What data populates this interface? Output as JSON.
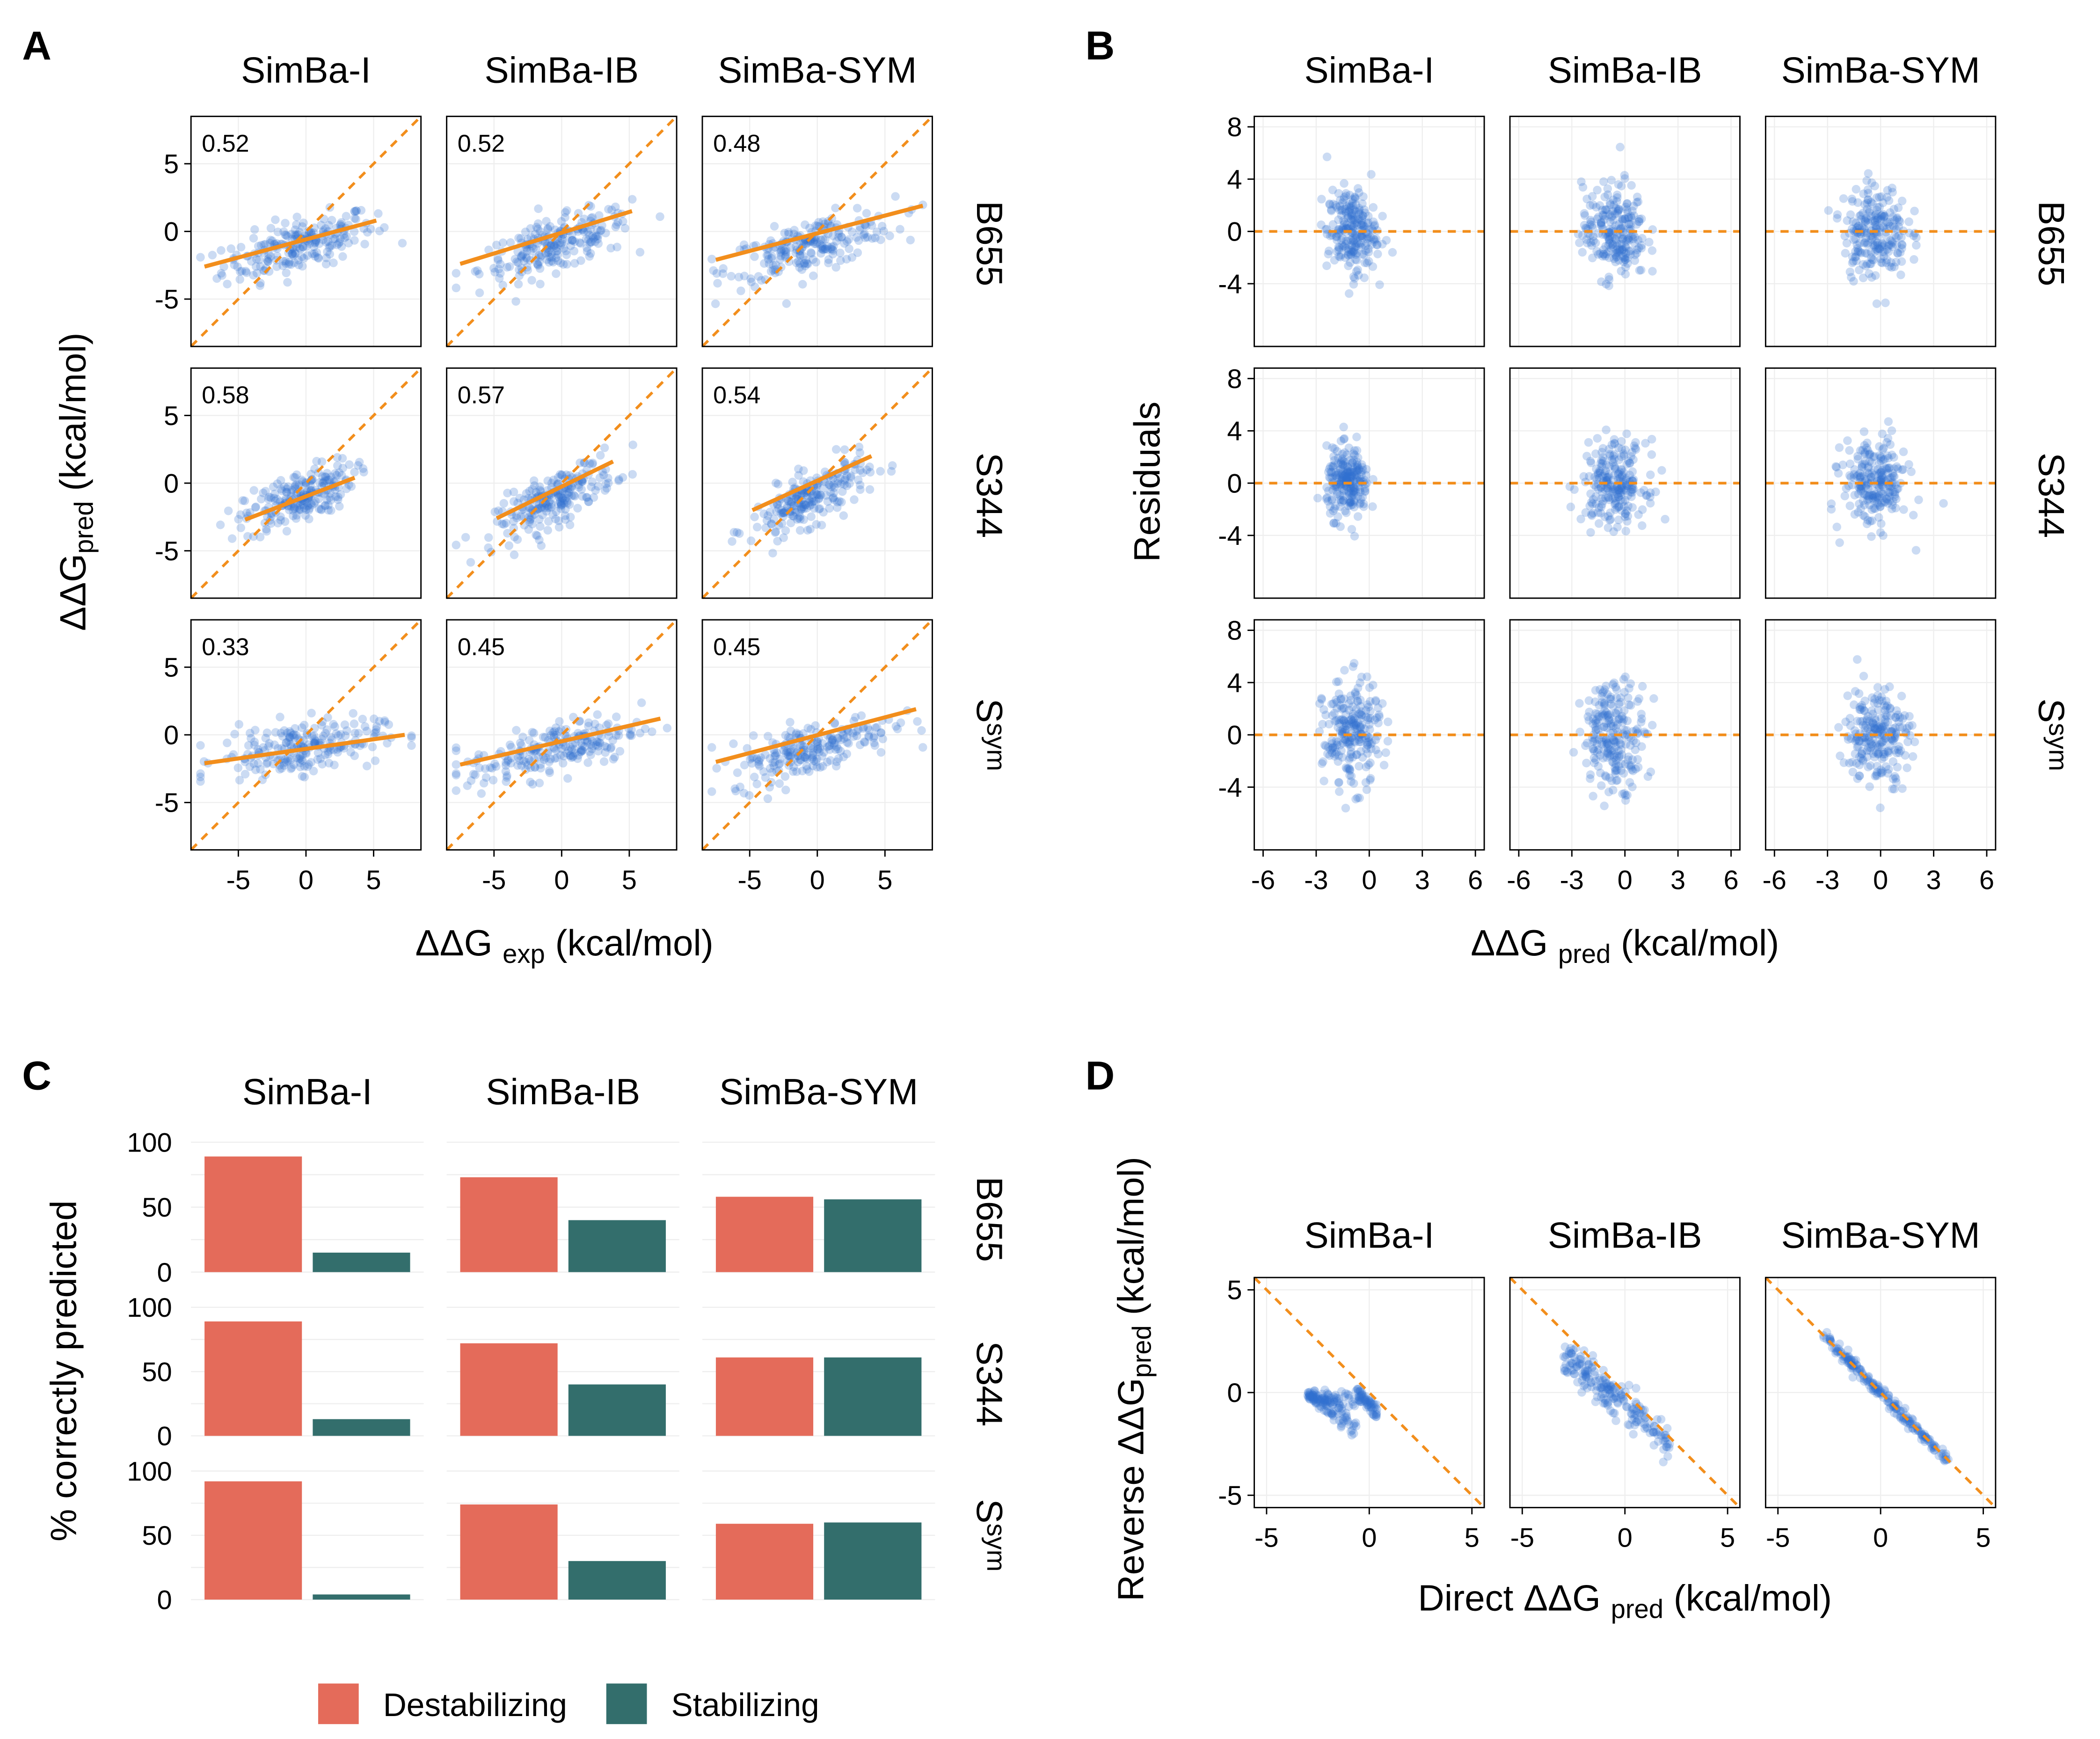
{
  "figure": {
    "panels": {
      "A": {
        "label": "A"
      },
      "B": {
        "label": "B"
      },
      "C": {
        "label": "C"
      },
      "D": {
        "label": "D"
      }
    },
    "methods": [
      "SimBa-I",
      "SimBa-IB",
      "SimBa-SYM"
    ],
    "datasets": [
      "B655",
      "S344",
      "S"
    ],
    "dataset_superscript": "sym",
    "colors": {
      "points": "#2f6fce",
      "orange": "#f28e1c",
      "destabilizing": "#e46b5a",
      "stabilizing": "#336e6c",
      "grid": "#eeeeee",
      "axis": "#000000"
    }
  },
  "chart_data": [
    {
      "id": "A",
      "type": "scatter",
      "xlabel": "ΔΔG",
      "xlabel_sub": "exp",
      "xlabel_unit": "(kcal/mol)",
      "ylabel": "ΔΔG",
      "ylabel_sub": "pred",
      "ylabel_unit": "(kcal/mol)",
      "xlim": [
        -8.5,
        8.5
      ],
      "ylim": [
        -8.5,
        8.5
      ],
      "xticks": [
        -5,
        0,
        5
      ],
      "yticks": [
        -5,
        0,
        5
      ],
      "xtick_labels": [
        "-5",
        "0",
        "5"
      ],
      "ytick_labels": [
        "-5",
        "0",
        "5"
      ],
      "reference_line": "y = x (dashed)",
      "correlations": [
        [
          "0.52",
          "0.52",
          "0.48"
        ],
        [
          "0.58",
          "0.57",
          "0.54"
        ],
        [
          "0.33",
          "0.45",
          "0.45"
        ]
      ],
      "fit_lines": [
        [
          [
            [
              -7.5,
              -2.6
            ],
            [
              5.2,
              0.8
            ]
          ],
          [
            [
              -7.5,
              -2.4
            ],
            [
              5.2,
              1.5
            ]
          ],
          [
            [
              -7.5,
              -2.1
            ],
            [
              7.8,
              1.9
            ]
          ]
        ],
        [
          [
            [
              -4.5,
              -2.7
            ],
            [
              3.6,
              0.4
            ]
          ],
          [
            [
              -4.8,
              -2.6
            ],
            [
              3.8,
              1.6
            ]
          ],
          [
            [
              -4.8,
              -2.0
            ],
            [
              4.0,
              2.0
            ]
          ]
        ],
        [
          [
            [
              -7.5,
              -2.1
            ],
            [
              7.3,
              0.0
            ]
          ],
          [
            [
              -7.5,
              -2.2
            ],
            [
              7.3,
              1.2
            ]
          ],
          [
            [
              -7.5,
              -2.0
            ],
            [
              7.3,
              1.9
            ]
          ]
        ]
      ]
    },
    {
      "id": "B",
      "type": "scatter",
      "xlabel": "ΔΔG",
      "xlabel_sub": "pred",
      "xlabel_unit": "(kcal/mol)",
      "ylabel": "Residuals",
      "xlim": [
        -6.5,
        6.5
      ],
      "ylim": [
        -8.8,
        8.8
      ],
      "xticks": [
        -6,
        -3,
        0,
        3,
        6
      ],
      "yticks": [
        -4,
        0,
        4,
        8
      ],
      "xtick_labels": [
        "-6",
        "-3",
        "0",
        "3",
        "6"
      ],
      "ytick_labels": [
        "-4",
        "0",
        "4",
        "8"
      ],
      "reference_line": "y = 0 (dashed)"
    },
    {
      "id": "C",
      "type": "bar",
      "ylabel": "% correctly predicted",
      "ylim": [
        0,
        100
      ],
      "yticks": [
        0,
        50,
        100
      ],
      "ytick_labels": [
        "0",
        "50",
        "100"
      ],
      "categories": [
        "Destabilizing",
        "Stabilizing"
      ],
      "series": [
        {
          "dataset": "B655",
          "method": "SimBa-I",
          "values": [
            89,
            15
          ]
        },
        {
          "dataset": "B655",
          "method": "SimBa-IB",
          "values": [
            73,
            40
          ]
        },
        {
          "dataset": "B655",
          "method": "SimBa-SYM",
          "values": [
            58,
            56
          ]
        },
        {
          "dataset": "S344",
          "method": "SimBa-I",
          "values": [
            89,
            13
          ]
        },
        {
          "dataset": "S344",
          "method": "SimBa-IB",
          "values": [
            72,
            40
          ]
        },
        {
          "dataset": "S344",
          "method": "SimBa-SYM",
          "values": [
            61,
            61
          ]
        },
        {
          "dataset": "Ssym",
          "method": "SimBa-I",
          "values": [
            92,
            4
          ]
        },
        {
          "dataset": "Ssym",
          "method": "SimBa-IB",
          "values": [
            74,
            30
          ]
        },
        {
          "dataset": "Ssym",
          "method": "SimBa-SYM",
          "values": [
            59,
            60
          ]
        }
      ],
      "legend": [
        "Destabilizing",
        "Stabilizing"
      ],
      "legend_position": "bottom"
    },
    {
      "id": "D",
      "type": "scatter",
      "xlabel": "Direct ΔΔG",
      "xlabel_sub": "pred",
      "xlabel_unit": "(kcal/mol)",
      "ylabel": "Reverse ΔΔG",
      "ylabel_sub": "pred",
      "ylabel_unit": "(kcal/mol)",
      "xlim": [
        -5.6,
        5.6
      ],
      "ylim": [
        -5.6,
        5.6
      ],
      "xticks": [
        -5,
        0,
        5
      ],
      "yticks": [
        -5,
        0,
        5
      ],
      "xtick_labels": [
        "-5",
        "0",
        "5"
      ],
      "ytick_labels": [
        "-5",
        "0",
        "5"
      ],
      "reference_line": "y = -x (dashed)"
    }
  ]
}
